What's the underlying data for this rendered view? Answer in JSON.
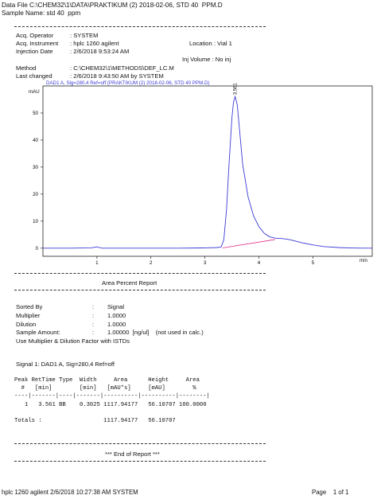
{
  "header": {
    "data_file": "Data File C:\\CHEM32\\1\\DATA\\PRAKTIKUM (2) 2018-02-06, STD 40  PPM.D",
    "sample_name": "Sample Name: std 40  ppm"
  },
  "acq": {
    "operator_label": "Acq. Operator",
    "operator_value": ": SYSTEM",
    "instrument_label": "Acq. Instrument",
    "instrument_value": ": hplc 1260 agilent",
    "location": "Location : Vial 1",
    "injection_date_label": "Injection Date",
    "injection_date_value": ": 2/6/2018 9:53:24 AM",
    "inj_volume": "Inj Volume : No inj",
    "method_label": "Method",
    "method_value": ": C:\\CHEM32\\1\\METHODS\\DEF_LC.M",
    "last_changed_label": "Last changed",
    "last_changed_value": ": 2/6/2018 9:43:50 AM by SYSTEM"
  },
  "chart_data": {
    "type": "line",
    "title": "DAD1 A, Sig=280,4 Ref=off (PRAKTIKUM (2) 2018-02-06, STD 40  PPM.D)",
    "ylabel": "mAU",
    "xlabel": "min",
    "xlim": [
      0,
      6.1
    ],
    "ylim": [
      -3,
      60
    ],
    "xticks": [
      1,
      2,
      3,
      4,
      5
    ],
    "yticks": [
      0,
      10,
      20,
      30,
      40,
      50
    ],
    "peak_label": "3.561",
    "series": [
      {
        "x": [
          0,
          0.5,
          0.9,
          1.0,
          1.05,
          1.1,
          1.2,
          1.5,
          2.0,
          2.5,
          3.0,
          3.2,
          3.3,
          3.35,
          3.4,
          3.45,
          3.5,
          3.53,
          3.561,
          3.6,
          3.65,
          3.7,
          3.8,
          3.9,
          4.0,
          4.1,
          4.2,
          4.3,
          4.4,
          4.5,
          4.6,
          4.7,
          4.8,
          5.0,
          5.2,
          5.5,
          5.8,
          6.1
        ],
        "values": [
          0,
          0,
          0.1,
          0.5,
          0.2,
          0,
          0,
          0,
          0,
          0,
          0.1,
          0.2,
          0.4,
          3,
          14,
          32,
          48,
          54,
          56.1,
          53,
          42,
          31,
          19,
          12,
          8,
          5.5,
          4.2,
          3.7,
          3.6,
          3.4,
          3.0,
          2.5,
          2.0,
          1.2,
          0.6,
          0.2,
          0.05,
          0
        ]
      }
    ],
    "baseline": {
      "x": [
        3.33,
        4.3
      ],
      "values": [
        0.1,
        3.2
      ]
    },
    "color": "#3b3bd6",
    "baseline_color": "#e0298a"
  },
  "report": {
    "title": "Area Percent Report",
    "sorted_by_label": "Sorted By",
    "sorted_by_value": ":        Signal",
    "multiplier_label": "Multiplier",
    "multiplier_value": ":        1.0000",
    "dilution_label": "Dilution",
    "dilution_value": ":        1.0000",
    "sample_amount_label": "Sample Amount:",
    "sample_amount_value": ":        1.00000  [ng/ul]    (not used in calc.)",
    "use_text": "Use Multiplier & Dilution Factor with ISTDs",
    "signal_text": "Signal 1: DAD1 A, Sig=280,4 Ref=off",
    "table_header_1": "Peak RetTime Type  Width     Area      Height     Area",
    "table_header_2": "  #   [min]        [min]   [mAU*s]     [mAU]        %",
    "table_sep": "----|-------|----|-------|----------|----------|--------|",
    "table_row": "   1   3.561 BB    0.3025 1117.94177   56.10707 100.0000",
    "totals": "Totals :                  1117.94177   56.10707",
    "end": "*** End of Report ***"
  },
  "footer": {
    "left": "hplc 1260 agilent 2/6/2018 10:27:38 AM SYSTEM",
    "right": "Page    1 of 1"
  }
}
